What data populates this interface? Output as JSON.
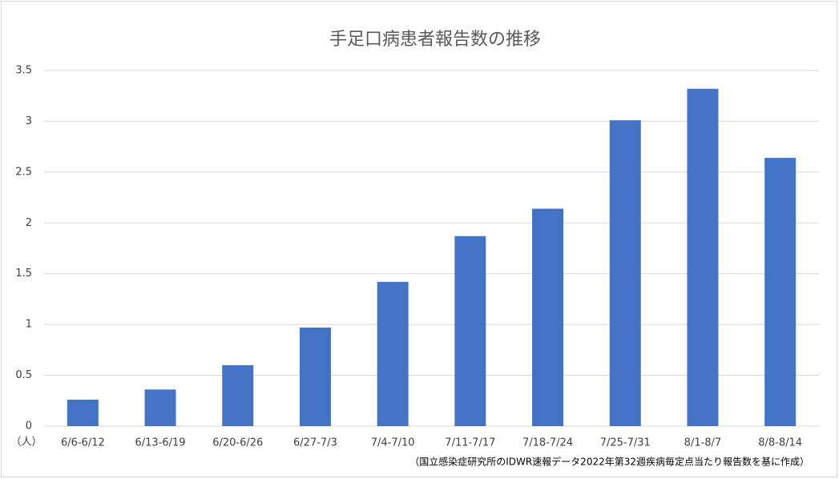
{
  "chart_data": {
    "type": "bar",
    "title": "手足口病患者報告数の推移",
    "y_unit": "（人）",
    "note": "（国立感染症研究所のIDWR速報データ2022年第32週疾病毎定点当たり報告数を基に作成）",
    "categories": [
      "6/6-6/12",
      "6/13-6/19",
      "6/20-6/26",
      "6/27-7/3",
      "7/4-7/10",
      "7/11-7/17",
      "7/18-7/24",
      "7/25-7/31",
      "8/1-8/7",
      "8/8-8/14"
    ],
    "values": [
      0.26,
      0.36,
      0.6,
      0.97,
      1.42,
      1.87,
      2.14,
      3.01,
      3.32,
      2.64
    ],
    "color": "#4472c4",
    "ylim": [
      0,
      3.5
    ],
    "yticks": [
      0,
      0.5,
      1,
      1.5,
      2,
      2.5,
      3,
      3.5
    ],
    "grid": true
  }
}
